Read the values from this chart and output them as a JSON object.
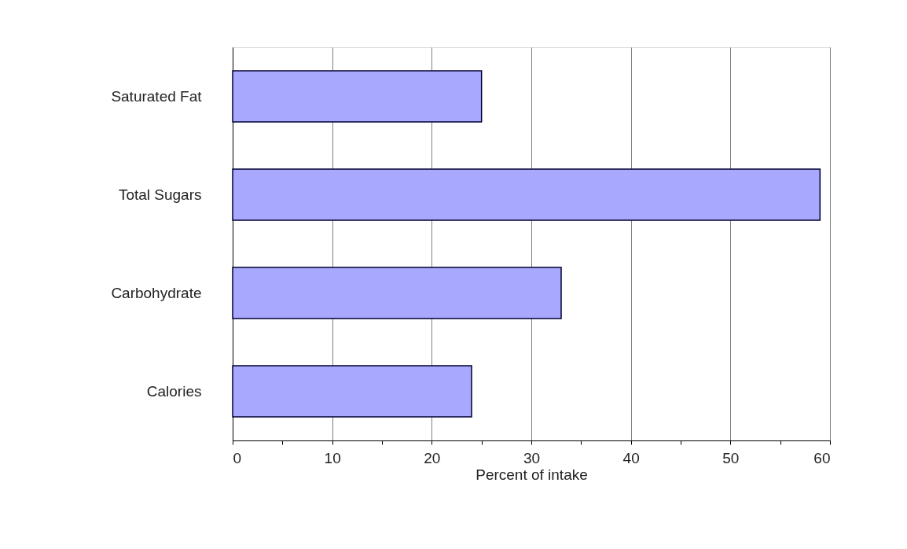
{
  "chart_data": {
    "type": "bar",
    "orientation": "horizontal",
    "xlabel": "Percent of intake",
    "categories": [
      "Saturated Fat",
      "Total Sugars",
      "Carbohydrate",
      "Calories"
    ],
    "values": [
      25,
      59,
      33,
      24
    ],
    "color": "#a8a8ff",
    "xlim": [
      0,
      60
    ],
    "xticks": [
      0,
      {
        "value": 5,
        "label": null
      },
      10,
      {
        "value": 15,
        "label": null
      },
      20,
      {
        "value": 25,
        "label": null
      },
      30,
      {
        "value": 35,
        "label": null
      },
      40,
      {
        "value": 45,
        "label": null
      },
      50,
      {
        "value": 55,
        "label": null
      },
      60
    ],
    "grid": "x"
  }
}
